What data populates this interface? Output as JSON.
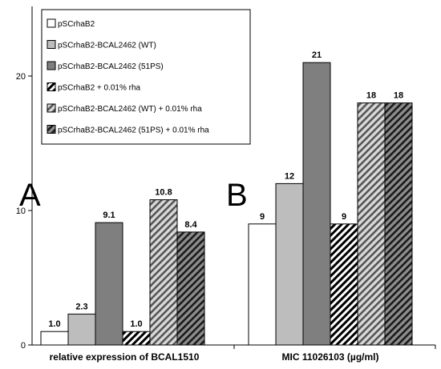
{
  "chart_data": {
    "type": "bar",
    "categories": [
      "relative expression of BCAL1510",
      "MIC 11026103 (µg/ml)"
    ],
    "series": [
      {
        "name": "pSCrhaB2",
        "values": [
          1.0,
          9
        ],
        "labels": [
          "1.0",
          "9"
        ],
        "fill": "white"
      },
      {
        "name": "pSCrhaB2-BCAL2462 (WT)",
        "values": [
          2.3,
          12
        ],
        "labels": [
          "2.3",
          "12"
        ],
        "fill": "#bdbdbd"
      },
      {
        "name": "pSCrhaB2-BCAL2462 (51PS)",
        "values": [
          9.1,
          21
        ],
        "labels": [
          "9.1",
          "21"
        ],
        "fill": "#7f7f7f"
      },
      {
        "name": "pSCrhaB2 + 0.01% rha",
        "values": [
          1.0,
          9
        ],
        "labels": [
          "1.0",
          "9"
        ],
        "fill": "hatch-white"
      },
      {
        "name": "pSCrhaB2-BCAL2462 (WT) + 0.01% rha",
        "values": [
          10.8,
          18
        ],
        "labels": [
          "10.8",
          "18"
        ],
        "fill": "hatch-light"
      },
      {
        "name": "pSCrhaB2-BCAL2462 (51PS) + 0.01% rha",
        "values": [
          8.4,
          18
        ],
        "labels": [
          "8.4",
          "18"
        ],
        "fill": "hatch-dark"
      }
    ],
    "yticks": [
      0,
      10,
      20
    ],
    "ylim": [
      0,
      25
    ],
    "grid": false,
    "legend_position": "top-left",
    "panel_labels": [
      "A",
      "B"
    ]
  }
}
